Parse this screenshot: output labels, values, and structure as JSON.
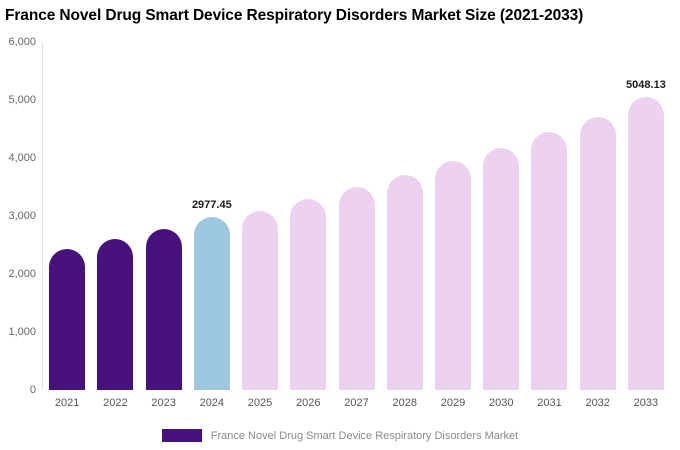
{
  "chart_data": {
    "type": "bar",
    "title": "France Novel Drug Smart Device Respiratory Disorders Market Size (2021-2033)",
    "xlabel": "",
    "ylabel": "",
    "ylim": [
      0,
      6000
    ],
    "grid": false,
    "legend_position": "bottom",
    "categories": [
      "2021",
      "2022",
      "2023",
      "2024",
      "2025",
      "2026",
      "2027",
      "2028",
      "2029",
      "2030",
      "2031",
      "2032",
      "2033"
    ],
    "values": [
      2430,
      2600,
      2770,
      2977.45,
      3090,
      3300,
      3500,
      3710,
      3940,
      4180,
      4440,
      4710,
      5048.13
    ],
    "bars": [
      {
        "year": "2021",
        "value": 2430,
        "role": "historical",
        "label": ""
      },
      {
        "year": "2022",
        "value": 2600,
        "role": "historical",
        "label": ""
      },
      {
        "year": "2023",
        "value": 2770,
        "role": "historical",
        "label": ""
      },
      {
        "year": "2024",
        "value": 2977.45,
        "role": "highlight",
        "label": "2977.45"
      },
      {
        "year": "2025",
        "value": 3090,
        "role": "forecast",
        "label": ""
      },
      {
        "year": "2026",
        "value": 3300,
        "role": "forecast",
        "label": ""
      },
      {
        "year": "2027",
        "value": 3500,
        "role": "forecast",
        "label": ""
      },
      {
        "year": "2028",
        "value": 3710,
        "role": "forecast",
        "label": ""
      },
      {
        "year": "2029",
        "value": 3940,
        "role": "forecast",
        "label": ""
      },
      {
        "year": "2030",
        "value": 4180,
        "role": "forecast",
        "label": ""
      },
      {
        "year": "2031",
        "value": 4440,
        "role": "forecast",
        "label": ""
      },
      {
        "year": "2032",
        "value": 4710,
        "role": "forecast",
        "label": ""
      },
      {
        "year": "2033",
        "value": 5048.13,
        "role": "forecast",
        "label": "5048.13"
      }
    ],
    "yticks": [
      {
        "value": 0,
        "label": "0"
      },
      {
        "value": 1000,
        "label": "1,000"
      },
      {
        "value": 2000,
        "label": "2,000"
      },
      {
        "value": 3000,
        "label": "3,000"
      },
      {
        "value": 4000,
        "label": "4,000"
      },
      {
        "value": 5000,
        "label": "5,000"
      },
      {
        "value": 6000,
        "label": "6,000"
      }
    ],
    "colors": {
      "historical": "#47127c",
      "highlight": "#9dc6e1",
      "forecast": "#ecd2ee"
    },
    "legend": [
      {
        "label": "France Novel Drug Smart Device Respiratory Disorders Market",
        "color": "#47127c"
      }
    ]
  }
}
